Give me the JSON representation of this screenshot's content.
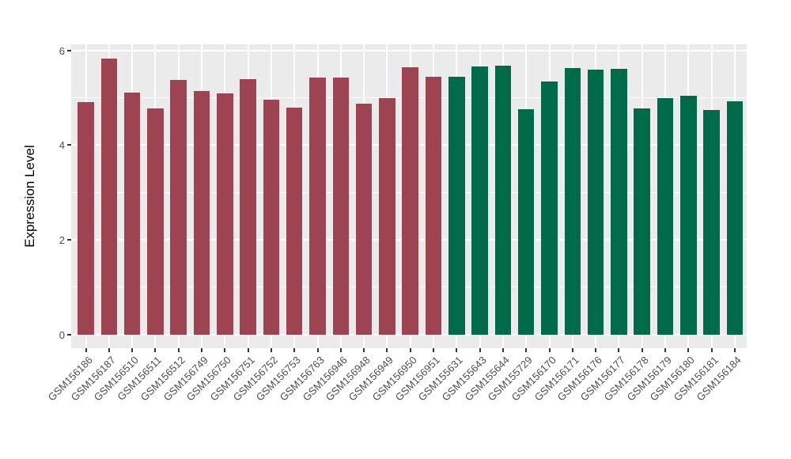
{
  "chart_data": {
    "type": "bar",
    "title": "",
    "xlabel": "",
    "ylabel": "Expression Level",
    "ylim": [
      0,
      6.13
    ],
    "yticks": [
      0,
      2,
      4,
      6
    ],
    "yminorticks": [
      1,
      3,
      5
    ],
    "grid": "on",
    "legend_position": "none",
    "panel_background_color": "#EBEBEB",
    "gridline_color": "#FFFFFF",
    "tick_text_color": "#4D4D4D",
    "axis_title_color": "#000000",
    "group_colors": {
      "group1": "#9E4352",
      "group2": "#006B49"
    },
    "categories": [
      "GSM156186",
      "GSM156187",
      "GSM156510",
      "GSM156511",
      "GSM156512",
      "GSM156749",
      "GSM156750",
      "GSM156751",
      "GSM156752",
      "GSM156753",
      "GSM156763",
      "GSM156946",
      "GSM156948",
      "GSM156949",
      "GSM156950",
      "GSM156951",
      "GSM155631",
      "GSM155643",
      "GSM155644",
      "GSM155729",
      "GSM156170",
      "GSM156171",
      "GSM156176",
      "GSM156177",
      "GSM156178",
      "GSM156179",
      "GSM156180",
      "GSM156181",
      "GSM156184"
    ],
    "values": [
      4.9,
      5.83,
      5.11,
      4.77,
      5.37,
      5.15,
      5.1,
      5.4,
      4.96,
      4.79,
      5.43,
      5.42,
      4.87,
      5.0,
      5.64,
      5.45,
      5.45,
      5.66,
      5.68,
      4.76,
      5.34,
      5.62,
      5.59,
      5.61,
      4.78,
      5.0,
      5.04,
      4.74,
      4.92
    ],
    "bar_groups": [
      "group1",
      "group1",
      "group1",
      "group1",
      "group1",
      "group1",
      "group1",
      "group1",
      "group1",
      "group1",
      "group1",
      "group1",
      "group1",
      "group1",
      "group1",
      "group1",
      "group2",
      "group2",
      "group2",
      "group2",
      "group2",
      "group2",
      "group2",
      "group2",
      "group2",
      "group2",
      "group2",
      "group2",
      "group2"
    ]
  }
}
